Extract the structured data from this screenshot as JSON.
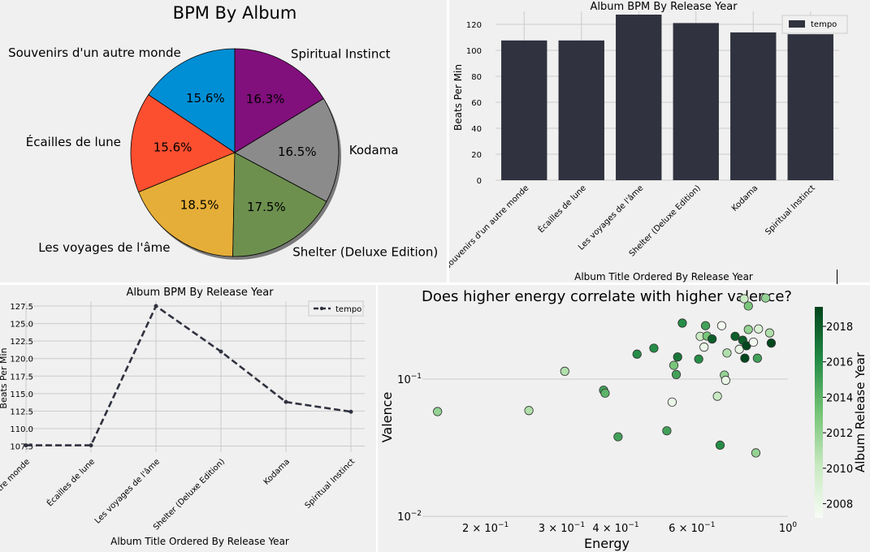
{
  "chart_data": [
    {
      "type": "pie",
      "title": "BPM By Album",
      "labels": [
        "Souvenirs d'un autre monde",
        "Écailles de lune",
        "Les voyages de l'âme",
        "Shelter (Deluxe Edition)",
        "Kodama",
        "Spiritual Instinct"
      ],
      "values": [
        15.6,
        15.6,
        18.5,
        17.5,
        16.5,
        16.3
      ],
      "pct_labels": [
        "15.6%",
        "15.6%",
        "18.5%",
        "17.5%",
        "16.5%",
        "16.3%"
      ],
      "colors": [
        "#008fd5",
        "#fc4f30",
        "#e5ae38",
        "#6d904f",
        "#8b8b8b",
        "#810f7c"
      ]
    },
    {
      "type": "bar",
      "title": "Album BPM By Release Year",
      "xlabel": "Album Title Ordered By Release Year",
      "ylabel": "Beats Per Min",
      "categories": [
        "Souvenirs d'un autre monde",
        "Écailles de lune",
        "Les voyages de l'âme",
        "Shelter (Deluxe Edition)",
        "Kodama",
        "Spiritual Instinct"
      ],
      "series": [
        {
          "name": "tempo",
          "values": [
            107.6,
            107.6,
            127.5,
            121.0,
            113.8,
            112.4
          ]
        }
      ],
      "ylim": [
        0,
        130
      ],
      "yticks": [
        0,
        20,
        40,
        60,
        80,
        100,
        120
      ],
      "legend": "top-right",
      "color": "#30323f"
    },
    {
      "type": "line",
      "title": "Album BPM By Release Year",
      "xlabel": "Album Title Ordered By Release Year",
      "ylabel": "Beats Per Min",
      "categories": [
        "Souvenirs d'un autre monde",
        "Écailles de lune",
        "Les voyages de l'âme",
        "Shelter (Deluxe Edition)",
        "Kodama",
        "Spiritual Instinct"
      ],
      "series": [
        {
          "name": "tempo",
          "values": [
            107.6,
            107.6,
            127.5,
            121.0,
            113.8,
            112.4
          ]
        }
      ],
      "ylim": [
        106.5,
        128.5
      ],
      "yticks": [
        107.5,
        110.0,
        112.5,
        115.0,
        117.5,
        120.0,
        122.5,
        125.0,
        127.5
      ],
      "legend": "top-right",
      "color": "#30323f"
    },
    {
      "type": "scatter",
      "title": "Does higher energy correlate with higher valence?",
      "xlabel": "Energy",
      "ylabel": "Valence",
      "xscale": "log",
      "yscale": "log",
      "xlim": [
        0.143,
        1.0
      ],
      "ylim": [
        0.0085,
        0.38
      ],
      "xticks": [
        {
          "v": 0.2,
          "m": "2 × 10",
          "e": "−1"
        },
        {
          "v": 0.3,
          "m": "3 × 10",
          "e": "−1"
        },
        {
          "v": 0.4,
          "m": "4 × 10",
          "e": "−1"
        },
        {
          "v": 0.6,
          "m": "6 × 10",
          "e": "−1"
        },
        {
          "v": 1.0,
          "m": "10",
          "e": "0"
        }
      ],
      "yticks": [
        {
          "v": 0.1,
          "m": "10",
          "e": "−1"
        },
        {
          "v": 0.01,
          "m": "10",
          "e": "−2"
        }
      ],
      "colorbar": {
        "label": "Album Release Year",
        "ticks": [
          2008,
          2010,
          2012,
          2014,
          2016,
          2018
        ],
        "min": 2007.2,
        "max": 2019.1
      },
      "points": [
        {
          "x": 0.155,
          "y": 0.058,
          "year": 2012
        },
        {
          "x": 0.252,
          "y": 0.059,
          "year": 2011
        },
        {
          "x": 0.305,
          "y": 0.114,
          "year": 2011
        },
        {
          "x": 0.375,
          "y": 0.083,
          "year": 2015
        },
        {
          "x": 0.378,
          "y": 0.079,
          "year": 2014
        },
        {
          "x": 0.405,
          "y": 0.038,
          "year": 2015
        },
        {
          "x": 0.448,
          "y": 0.152,
          "year": 2016
        },
        {
          "x": 0.49,
          "y": 0.168,
          "year": 2016
        },
        {
          "x": 0.525,
          "y": 0.042,
          "year": 2015
        },
        {
          "x": 0.54,
          "y": 0.068,
          "year": 2008
        },
        {
          "x": 0.545,
          "y": 0.126,
          "year": 2013
        },
        {
          "x": 0.552,
          "y": 0.108,
          "year": 2015
        },
        {
          "x": 0.556,
          "y": 0.145,
          "year": 2017
        },
        {
          "x": 0.57,
          "y": 0.256,
          "year": 2016
        },
        {
          "x": 0.622,
          "y": 0.14,
          "year": 2016
        },
        {
          "x": 0.627,
          "y": 0.205,
          "year": 2010
        },
        {
          "x": 0.64,
          "y": 0.171,
          "year": 2008
        },
        {
          "x": 0.645,
          "y": 0.245,
          "year": 2015
        },
        {
          "x": 0.65,
          "y": 0.206,
          "year": 2013
        },
        {
          "x": 0.668,
          "y": 0.196,
          "year": 2018
        },
        {
          "x": 0.687,
          "y": 0.075,
          "year": 2010
        },
        {
          "x": 0.697,
          "y": 0.033,
          "year": 2016
        },
        {
          "x": 0.703,
          "y": 0.245,
          "year": 2007.5
        },
        {
          "x": 0.713,
          "y": 0.107,
          "year": 2012
        },
        {
          "x": 0.718,
          "y": 0.098,
          "year": 2008
        },
        {
          "x": 0.723,
          "y": 0.155,
          "year": 2011
        },
        {
          "x": 0.755,
          "y": 0.205,
          "year": 2018
        },
        {
          "x": 0.772,
          "y": 0.165,
          "year": 2008
        },
        {
          "x": 0.786,
          "y": 0.192,
          "year": 2018
        },
        {
          "x": 0.792,
          "y": 0.385,
          "year": 2010
        },
        {
          "x": 0.795,
          "y": 0.142,
          "year": 2019
        },
        {
          "x": 0.802,
          "y": 0.175,
          "year": 2019
        },
        {
          "x": 0.81,
          "y": 0.341,
          "year": 2013
        },
        {
          "x": 0.81,
          "y": 0.23,
          "year": 2012
        },
        {
          "x": 0.832,
          "y": 0.186,
          "year": 2007.5
        },
        {
          "x": 0.843,
          "y": 0.029,
          "year": 2012
        },
        {
          "x": 0.85,
          "y": 0.142,
          "year": 2015
        },
        {
          "x": 0.855,
          "y": 0.232,
          "year": 2009
        },
        {
          "x": 0.888,
          "y": 0.39,
          "year": 2012
        },
        {
          "x": 0.907,
          "y": 0.217,
          "year": 2011
        },
        {
          "x": 0.915,
          "y": 0.183,
          "year": 2019
        }
      ]
    }
  ]
}
